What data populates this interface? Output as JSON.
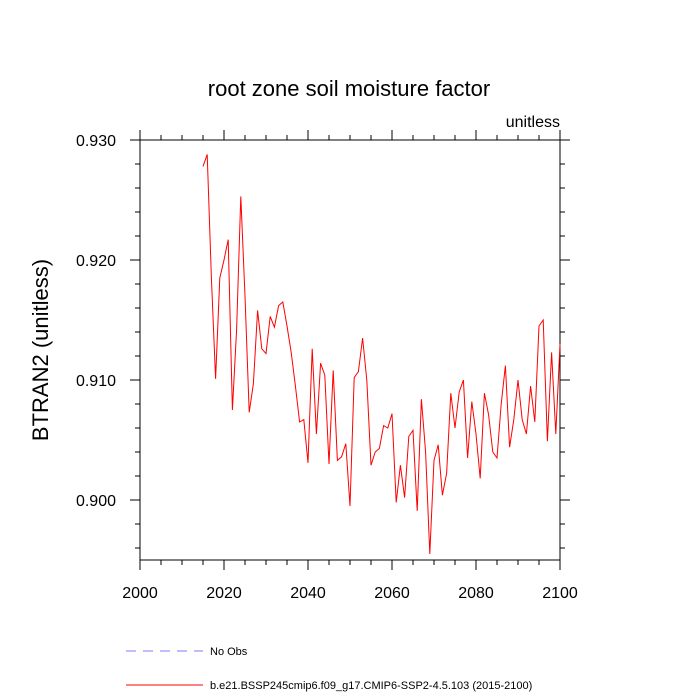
{
  "chart_data": {
    "type": "line",
    "title": "root zone soil moisture factor",
    "units": "unitless",
    "xlabel": "",
    "ylabel": "BTRAN2  (unitless)",
    "xlim": [
      2000,
      2100
    ],
    "ylim": [
      0.895,
      0.93
    ],
    "x_ticks": [
      2000,
      2020,
      2040,
      2060,
      2080,
      2100
    ],
    "x_tick_labels": [
      "2000",
      "2020",
      "2040",
      "2060",
      "2080",
      "2100"
    ],
    "x_minor_step": 5,
    "y_ticks": [
      0.9,
      0.91,
      0.92,
      0.93
    ],
    "y_tick_labels": [
      "0.900",
      "0.910",
      "0.920",
      "0.930"
    ],
    "y_minor_step": 0.002,
    "series": [
      {
        "name": "b.e21.BSSP245cmip6.f09_g17.CMIP6-SSP2-4.5.103 (2015-2100)",
        "color": "#ff0000",
        "style": "solid",
        "x": [
          2015,
          2016,
          2017,
          2018,
          2019,
          2020,
          2021,
          2022,
          2023,
          2024,
          2025,
          2026,
          2027,
          2028,
          2029,
          2030,
          2031,
          2032,
          2033,
          2034,
          2035,
          2036,
          2037,
          2038,
          2039,
          2040,
          2041,
          2042,
          2043,
          2044,
          2045,
          2046,
          2047,
          2048,
          2049,
          2050,
          2051,
          2052,
          2053,
          2054,
          2055,
          2056,
          2057,
          2058,
          2059,
          2060,
          2061,
          2062,
          2063,
          2064,
          2065,
          2066,
          2067,
          2068,
          2069,
          2070,
          2071,
          2072,
          2073,
          2074,
          2075,
          2076,
          2077,
          2078,
          2079,
          2080,
          2081,
          2082,
          2083,
          2084,
          2085,
          2086,
          2087,
          2088,
          2089,
          2090,
          2091,
          2092,
          2093,
          2094,
          2095,
          2096,
          2097,
          2098,
          2099,
          2100
        ],
        "values": [
          0.9278,
          0.9288,
          0.9185,
          0.9101,
          0.9185,
          0.92,
          0.9217,
          0.9075,
          0.9142,
          0.9253,
          0.917,
          0.9073,
          0.9097,
          0.9158,
          0.9126,
          0.9122,
          0.9153,
          0.9144,
          0.9162,
          0.9165,
          0.9145,
          0.9123,
          0.9095,
          0.9065,
          0.9067,
          0.9031,
          0.9126,
          0.9055,
          0.9114,
          0.9104,
          0.903,
          0.9108,
          0.9033,
          0.9036,
          0.9047,
          0.8995,
          0.9102,
          0.9107,
          0.9135,
          0.91,
          0.9029,
          0.904,
          0.9043,
          0.9062,
          0.906,
          0.9072,
          0.8998,
          0.9029,
          0.9002,
          0.9053,
          0.9058,
          0.8991,
          0.9084,
          0.904,
          0.8955,
          0.9033,
          0.9046,
          0.9004,
          0.9022,
          0.9089,
          0.906,
          0.909,
          0.91,
          0.9035,
          0.9082,
          0.9055,
          0.9018,
          0.9089,
          0.9071,
          0.904,
          0.9035,
          0.908,
          0.9112,
          0.9044,
          0.9067,
          0.91,
          0.9067,
          0.9055,
          0.9095,
          0.9065,
          0.9145,
          0.915,
          0.9049,
          0.9123,
          0.9055,
          0.913
        ]
      }
    ],
    "legend": [
      {
        "label": "No Obs",
        "color": "#7b7bff",
        "style": "dashed"
      },
      {
        "label": "b.e21.BSSP245cmip6.f09_g17.CMIP6-SSP2-4.5.103 (2015-2100)",
        "color": "#ff0000",
        "style": "solid"
      }
    ],
    "legend_position": "bottom-left",
    "grid": false
  }
}
